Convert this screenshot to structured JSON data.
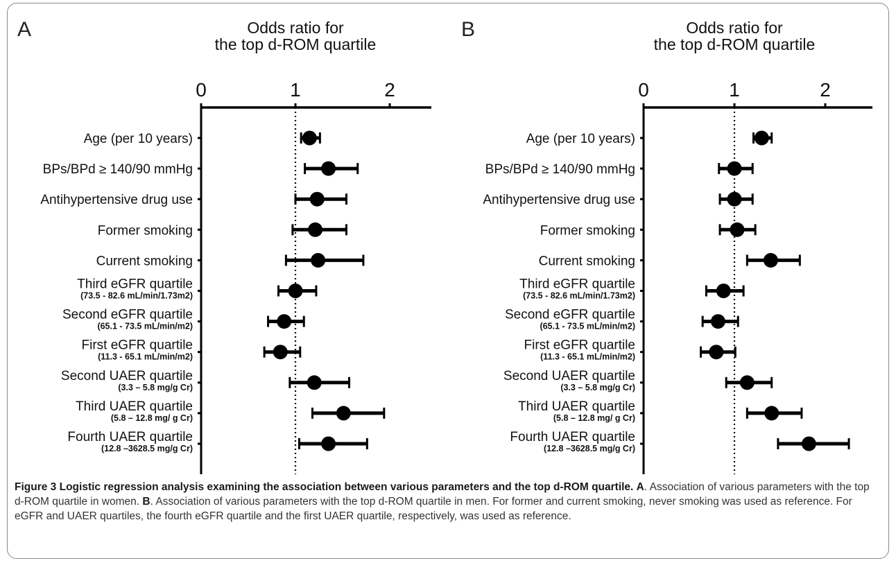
{
  "chart_data": [
    {
      "type": "forest",
      "panel_label": "A",
      "title_lines": [
        "Odds ratio for",
        "the top d-ROM quartile"
      ],
      "xticks": [
        0,
        1,
        2
      ],
      "xlim": [
        0,
        2.5
      ],
      "reference_line": 1,
      "rows": [
        {
          "label": "Age (per 10 years)",
          "sublabel": "",
          "or": 1.15,
          "lo": 1.06,
          "hi": 1.26
        },
        {
          "label": "BPs/BPd ≥ 140/90 mmHg",
          "sublabel": "",
          "or": 1.35,
          "lo": 1.1,
          "hi": 1.66
        },
        {
          "label": "Antihypertensive drug use",
          "sublabel": "",
          "or": 1.23,
          "lo": 1.0,
          "hi": 1.54
        },
        {
          "label": "Former smoking",
          "sublabel": "",
          "or": 1.21,
          "lo": 0.97,
          "hi": 1.54
        },
        {
          "label": "Current smoking",
          "sublabel": "",
          "or": 1.24,
          "lo": 0.9,
          "hi": 1.72
        },
        {
          "label": "Third eGFR quartile",
          "sublabel": "(73.5 - 82.6 mL/min/1.73m2)",
          "or": 1.0,
          "lo": 0.82,
          "hi": 1.22
        },
        {
          "label": "Second eGFR quartile",
          "sublabel": "(65.1 - 73.5 mL/min/m2)",
          "or": 0.88,
          "lo": 0.71,
          "hi": 1.09
        },
        {
          "label": "First eGFR quartile",
          "sublabel": "(11.3 - 65.1 mL/min/m2)",
          "or": 0.84,
          "lo": 0.67,
          "hi": 1.05
        },
        {
          "label": "Second UAER quartile",
          "sublabel": "(3.3 – 5.8 mg/g Cr)",
          "or": 1.2,
          "lo": 0.94,
          "hi": 1.57
        },
        {
          "label": "Third UAER quartile",
          "sublabel": "(5.8 – 12.8 mg/ g Cr)",
          "or": 1.51,
          "lo": 1.18,
          "hi": 1.94
        },
        {
          "label": "Fourth UAER quartile",
          "sublabel": "(12.8 –3628.5 mg/g Cr)",
          "or": 1.35,
          "lo": 1.04,
          "hi": 1.76
        }
      ]
    },
    {
      "type": "forest",
      "panel_label": "B",
      "title_lines": [
        "Odds ratio for",
        "the top d-ROM quartile"
      ],
      "xticks": [
        0,
        1,
        2
      ],
      "xlim": [
        0,
        2.5
      ],
      "reference_line": 1,
      "rows": [
        {
          "label": "Age (per 10 years)",
          "sublabel": "",
          "or": 1.3,
          "lo": 1.21,
          "hi": 1.41
        },
        {
          "label": "BPs/BPd ≥ 140/90 mmHg",
          "sublabel": "",
          "or": 1.0,
          "lo": 0.83,
          "hi": 1.2
        },
        {
          "label": "Antihypertensive drug use",
          "sublabel": "",
          "or": 1.0,
          "lo": 0.84,
          "hi": 1.2
        },
        {
          "label": "Former smoking",
          "sublabel": "",
          "or": 1.03,
          "lo": 0.84,
          "hi": 1.23
        },
        {
          "label": "Current smoking",
          "sublabel": "",
          "or": 1.4,
          "lo": 1.14,
          "hi": 1.72
        },
        {
          "label": "Third eGFR quartile",
          "sublabel": "(73.5 - 82.6 mL/min/1.73m2)",
          "or": 0.88,
          "lo": 0.69,
          "hi": 1.1
        },
        {
          "label": "Second eGFR quartile",
          "sublabel": "(65.1 - 73.5 mL/min/m2)",
          "or": 0.82,
          "lo": 0.65,
          "hi": 1.04
        },
        {
          "label": "First eGFR quartile",
          "sublabel": "(11.3 - 65.1 mL/min/m2)",
          "or": 0.8,
          "lo": 0.63,
          "hi": 1.01
        },
        {
          "label": "Second UAER quartile",
          "sublabel": "(3.3 – 5.8 mg/g Cr)",
          "or": 1.14,
          "lo": 0.91,
          "hi": 1.41
        },
        {
          "label": "Third UAER quartile",
          "sublabel": "(5.8 – 12.8 mg/ g Cr)",
          "or": 1.41,
          "lo": 1.14,
          "hi": 1.74
        },
        {
          "label": "Fourth UAER quartile",
          "sublabel": "(12.8 –3628.5 mg/g Cr)",
          "or": 1.82,
          "lo": 1.48,
          "hi": 2.26
        }
      ]
    }
  ],
  "caption": {
    "figure_label": "Figure 3",
    "title": "Logistic regression analysis examining the association between various parameters and the top d-ROM quartile.",
    "part_a_label": "A",
    "part_a_text": ". Association of various parameters with the top d-ROM quartile in women.",
    "part_b_label": "B",
    "part_b_text": ". Association of various parameters with the top d-ROM quartile in men. For former and current smoking, never smoking was used as reference. For eGFR and UAER quartiles, the fourth eGFR quartile and the first UAER quartile, respectively, was used as reference."
  }
}
